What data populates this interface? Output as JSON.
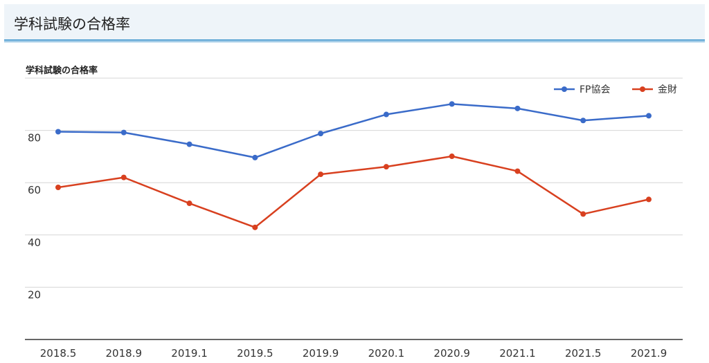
{
  "header": {
    "title": "学科試験の合格率"
  },
  "chart_data": {
    "type": "line",
    "title": "学科試験の合格率",
    "xlabel": "",
    "ylabel": "",
    "categories": [
      "2018.5",
      "2018.9",
      "2019.1",
      "2019.5",
      "2019.9",
      "2020.1",
      "2020.9",
      "2021.1",
      "2021.5",
      "2021.9"
    ],
    "y_ticks": [
      "20",
      "40",
      "60",
      "80"
    ],
    "ylim": [
      0,
      100
    ],
    "grid": true,
    "legend_position": "top-right",
    "series": [
      {
        "name": "FP協会",
        "color": "#3a6bc9",
        "values": [
          79.5,
          79.2,
          74.7,
          69.6,
          78.8,
          86.1,
          90.1,
          88.4,
          83.8,
          85.6
        ]
      },
      {
        "name": "金財",
        "color": "#d8401f",
        "values": [
          58.2,
          62.0,
          52.1,
          42.9,
          63.2,
          66.1,
          70.1,
          64.4,
          48.0,
          53.6
        ]
      }
    ]
  }
}
